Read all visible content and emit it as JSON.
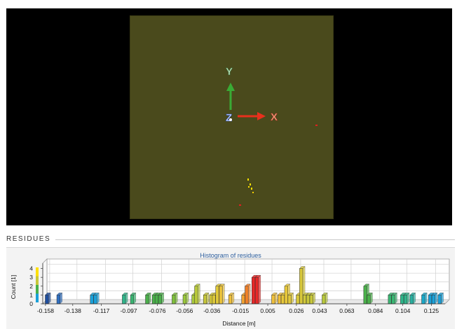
{
  "viewport": {
    "axis_labels": {
      "x": "X",
      "y": "Y",
      "z": "Z"
    },
    "colors": {
      "background": "#000000",
      "plane": "#4a4a1c",
      "x_axis": "#e8301c",
      "y_axis": "#3aaa35",
      "z_axis": "#3a62c8",
      "points_yellow": "#ffe000",
      "points_red": "#e02020"
    }
  },
  "section": {
    "title": "RESIDUES"
  },
  "chart_data": {
    "type": "bar",
    "title": "Histogram of residues",
    "xlabel": "Distance [m]",
    "ylabel": "Count [1]",
    "xlim": [
      -0.16,
      0.135
    ],
    "ylim": [
      0,
      4.6
    ],
    "x_ticks": [
      -0.158,
      -0.138,
      -0.117,
      -0.097,
      -0.076,
      -0.056,
      -0.036,
      -0.015,
      0.005,
      0.026,
      0.043,
      0.063,
      0.084,
      0.104,
      0.125
    ],
    "x_tick_labels": [
      "-0.158",
      "-0.138",
      "-0.117",
      "-0.097",
      "-0.076",
      "-0.056",
      "-0.036",
      "-0.015",
      "0.005",
      "0.026",
      "0.043",
      "0.063",
      "0.084",
      "0.104",
      "0.125"
    ],
    "y_ticks": [
      0,
      1,
      2,
      3,
      4
    ],
    "y_tick_labels": [
      "0",
      "1",
      "2",
      "3",
      "4"
    ],
    "bin_width": 0.0024,
    "bins": [
      {
        "x": -0.157,
        "count": 1,
        "color": "#1f4fa0"
      },
      {
        "x": -0.1485,
        "count": 1,
        "color": "#2f6fc0"
      },
      {
        "x": -0.124,
        "count": 1,
        "color": "#1aa0d8"
      },
      {
        "x": -0.1215,
        "count": 1,
        "color": "#1aa0d8"
      },
      {
        "x": -0.1005,
        "count": 1,
        "color": "#2fb58a"
      },
      {
        "x": -0.0945,
        "count": 1,
        "color": "#3ab572"
      },
      {
        "x": -0.0835,
        "count": 1,
        "color": "#4ab04a"
      },
      {
        "x": -0.0785,
        "count": 1,
        "color": "#4ab04a"
      },
      {
        "x": -0.0765,
        "count": 1,
        "color": "#4ab04a"
      },
      {
        "x": -0.074,
        "count": 1,
        "color": "#4ab04a"
      },
      {
        "x": -0.064,
        "count": 1,
        "color": "#7ec03a"
      },
      {
        "x": -0.056,
        "count": 1,
        "color": "#9ac83a"
      },
      {
        "x": -0.0495,
        "count": 1,
        "color": "#a8c83a"
      },
      {
        "x": -0.0475,
        "count": 2,
        "color": "#b8c83a"
      },
      {
        "x": -0.041,
        "count": 1,
        "color": "#c8c83a"
      },
      {
        "x": -0.0365,
        "count": 1,
        "color": "#d4c83a"
      },
      {
        "x": -0.0345,
        "count": 1,
        "color": "#dcc83a"
      },
      {
        "x": -0.032,
        "count": 2,
        "color": "#e0c83a"
      },
      {
        "x": -0.0295,
        "count": 2,
        "color": "#e8c03a"
      },
      {
        "x": -0.0225,
        "count": 1,
        "color": "#f0c03a"
      },
      {
        "x": -0.013,
        "count": 1,
        "color": "#f0a030"
      },
      {
        "x": -0.0105,
        "count": 2,
        "color": "#f08028"
      },
      {
        "x": -0.0055,
        "count": 3,
        "color": "#e82828"
      },
      {
        "x": -0.003,
        "count": 3,
        "color": "#e82828"
      },
      {
        "x": 0.009,
        "count": 1,
        "color": "#f0c03a"
      },
      {
        "x": 0.0135,
        "count": 1,
        "color": "#f0c03a"
      },
      {
        "x": 0.016,
        "count": 1,
        "color": "#e8c83a"
      },
      {
        "x": 0.0185,
        "count": 2,
        "color": "#e8c83a"
      },
      {
        "x": 0.021,
        "count": 1,
        "color": "#e0c83a"
      },
      {
        "x": 0.027,
        "count": 1,
        "color": "#d8c83a"
      },
      {
        "x": 0.0295,
        "count": 4,
        "color": "#d8c83a"
      },
      {
        "x": 0.032,
        "count": 1,
        "color": "#d0c83a"
      },
      {
        "x": 0.0345,
        "count": 1,
        "color": "#c8c83a"
      },
      {
        "x": 0.037,
        "count": 1,
        "color": "#c8c83a"
      },
      {
        "x": 0.046,
        "count": 1,
        "color": "#b8c83a"
      },
      {
        "x": 0.0765,
        "count": 2,
        "color": "#4ab04a"
      },
      {
        "x": 0.079,
        "count": 1,
        "color": "#4ab04a"
      },
      {
        "x": 0.0945,
        "count": 1,
        "color": "#3ab572"
      },
      {
        "x": 0.097,
        "count": 1,
        "color": "#3ab572"
      },
      {
        "x": 0.1035,
        "count": 1,
        "color": "#2fb58a"
      },
      {
        "x": 0.106,
        "count": 1,
        "color": "#2fb58a"
      },
      {
        "x": 0.1105,
        "count": 1,
        "color": "#28b0a0"
      },
      {
        "x": 0.119,
        "count": 1,
        "color": "#1aa8c8"
      },
      {
        "x": 0.124,
        "count": 1,
        "color": "#1aa0d8"
      },
      {
        "x": 0.1265,
        "count": 1,
        "color": "#1aa0d8"
      },
      {
        "x": 0.131,
        "count": 1,
        "color": "#1aa0d8"
      }
    ],
    "scale_legend_colors": [
      "#ffe000",
      "#c8c83a",
      "#4ab04a",
      "#1aa0d8"
    ],
    "grid": true
  }
}
